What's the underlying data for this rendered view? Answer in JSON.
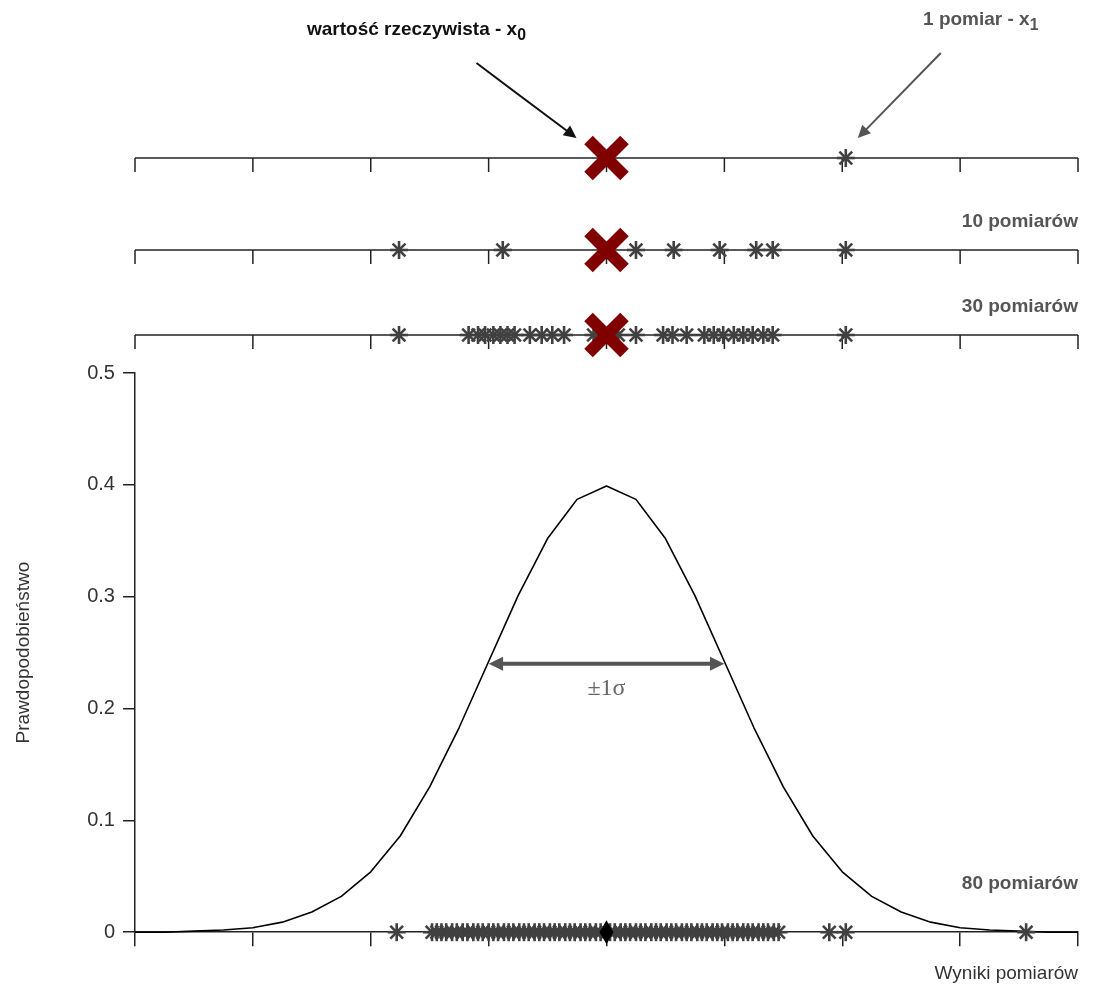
{
  "chart_data": {
    "type": "line",
    "xlabel": "Wyniki pomiarów",
    "ylabel": "Prawdopodobieństwo",
    "annotations": [
      "wartość rzeczywista - x$_{0}$",
      "1 pomiar - x$_{1}$",
      "10 pomiarów",
      "30 pomiarów",
      "80 pomiarów",
      "±1σ"
    ],
    "categories": [
      null,
      null,
      null,
      null,
      null,
      null,
      null,
      null,
      null,
      null,
      null,
      null,
      null,
      null,
      null,
      null,
      null,
      null,
      null,
      null,
      null,
      null,
      null,
      null,
      null,
      null,
      null,
      null,
      null,
      null,
      null,
      null,
      null
    ],
    "ylim": [
      0,
      0.5
    ],
    "yticks": [
      0,
      0.1,
      0.2,
      0.3,
      0.4,
      0.5
    ],
    "tick_labels": "y",
    "marker": "none",
    "series": [
      {
        "color": "#000000",
        "values": [
          0,
          0,
          0.001,
          0.002,
          0.004,
          0.009,
          0.018,
          0.032,
          0.054,
          0.086,
          0.13,
          0.183,
          0.242,
          0.301,
          0.352,
          0.387,
          0.399,
          0.387,
          0.352,
          0.301,
          0.242,
          0.183,
          0.13,
          0.086,
          0.054,
          0.032,
          0.018,
          0.009,
          0.004,
          0.002,
          0.001,
          0,
          0
        ]
      }
    ]
  }
}
